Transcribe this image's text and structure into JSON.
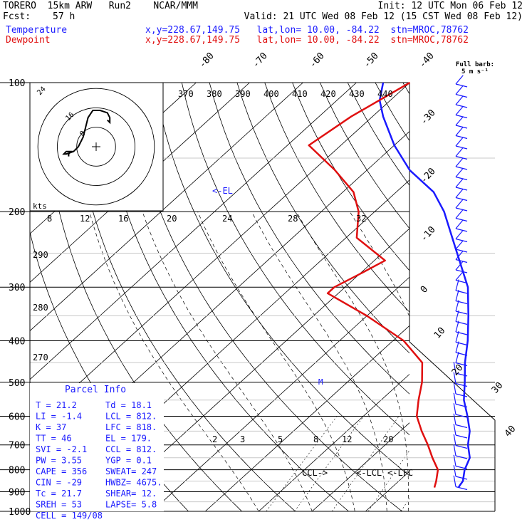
{
  "header": {
    "model": "TORERO  15km ARW   Run2    NCAR/MMM",
    "init": "Init: 12 UTC Mon 06 Feb 12",
    "fcst_label": "Fcst:",
    "fcst_value": "57 h",
    "valid": "Valid: 21 UTC Wed 08 Feb 12 (15 CST Wed 08 Feb 12)"
  },
  "legend": {
    "temperature": {
      "label": "Temperature",
      "location": "x,y=228.67,149.75   lat,lon= 10.00, -84.22  stn=MROC,78762",
      "color": "#1a1aff"
    },
    "dewpoint": {
      "label": "Dewpoint",
      "location": "x,y=228.67,149.75   lat,lon= 10.00, -84.22  stn=MROC,78762",
      "color": "#e01010"
    }
  },
  "barb_legend": {
    "line1": "Full barb:",
    "line2": "5 m s⁻¹"
  },
  "hodograph": {
    "units_label": "kts",
    "ring_labels": [
      "8",
      "16",
      "24"
    ]
  },
  "annotations": {
    "el": "<-EL",
    "ccl": "CCL->",
    "lcl": "<-LCL",
    "lfc": "<-LFC",
    "m": "M"
  },
  "parcel_info": {
    "title": "Parcel Info",
    "rows": [
      [
        "T   =   21.2",
        "Td =  18.1"
      ],
      [
        "LI  =   -1.4",
        "LCL =  812."
      ],
      [
        "K   =     37",
        "LFC =  818."
      ],
      [
        "TT  =     46",
        "EL  =  179."
      ],
      [
        "SVI =   -2.1",
        "CCL =  812."
      ],
      [
        "PW  =   3.55",
        "YGP =   0.1"
      ],
      [
        "CAPE =   356",
        "SWEAT=  247"
      ],
      [
        "CIN  =   -29",
        "HWBZ= 4675."
      ],
      [
        "Tc  =   21.7",
        "SHEAR=  12."
      ],
      [
        "SREH =    53",
        "LAPSE=  5.8"
      ],
      [
        "CELL = 149/08",
        ""
      ]
    ]
  },
  "chart_data": {
    "type": "line",
    "subtype": "skew-t log-p sounding",
    "y_axis": {
      "quantity": "pressure (hPa)",
      "scale": "log",
      "ticks": [
        100,
        200,
        300,
        400,
        500,
        600,
        700,
        800,
        900,
        1000
      ],
      "range": [
        1000,
        100
      ]
    },
    "isotherm_labels": [
      -80,
      -70,
      -60,
      -50,
      -40,
      -30,
      -20,
      -10,
      0,
      10,
      20,
      30,
      40
    ],
    "theta_e_labels": [
      370,
      380,
      390,
      400,
      410,
      420,
      430,
      440
    ],
    "mixing_ratio_upper_labels": [
      8,
      12,
      16,
      20,
      24,
      28,
      32
    ],
    "mixing_ratio_lower_labels": [
      2,
      3,
      5,
      8,
      12,
      20
    ],
    "theta_labels": [
      290,
      280,
      270
    ],
    "series": [
      {
        "name": "Temperature",
        "color": "#1a1aff",
        "values": [
          [
            880,
            22.5
          ],
          [
            870,
            22.3
          ],
          [
            850,
            22.0
          ],
          [
            800,
            20.0
          ],
          [
            750,
            18.5
          ],
          [
            700,
            15.5
          ],
          [
            650,
            13.0
          ],
          [
            600,
            9.5
          ],
          [
            550,
            5.5
          ],
          [
            500,
            2.0
          ],
          [
            450,
            -2.0
          ],
          [
            400,
            -6.0
          ],
          [
            350,
            -11.0
          ],
          [
            300,
            -17.0
          ],
          [
            250,
            -26.0
          ],
          [
            200,
            -37.0
          ],
          [
            180,
            -43.0
          ],
          [
            160,
            -52.0
          ],
          [
            140,
            -60.0
          ],
          [
            120,
            -68.0
          ],
          [
            110,
            -72.0
          ],
          [
            100,
            -75.0
          ]
        ]
      },
      {
        "name": "Dewpoint",
        "color": "#e01010",
        "values": [
          [
            880,
            18.0
          ],
          [
            850,
            17.0
          ],
          [
            800,
            15.0
          ],
          [
            750,
            11.5
          ],
          [
            700,
            8.0
          ],
          [
            650,
            4.0
          ],
          [
            600,
            0.0
          ],
          [
            550,
            -3.0
          ],
          [
            500,
            -6.0
          ],
          [
            450,
            -10.0
          ],
          [
            400,
            -18.0
          ],
          [
            350,
            -30.0
          ],
          [
            310,
            -42.0
          ],
          [
            300,
            -42.0
          ],
          [
            280,
            -40.0
          ],
          [
            260,
            -38.0
          ],
          [
            230,
            -48.0
          ],
          [
            200,
            -53.0
          ],
          [
            180,
            -58.0
          ],
          [
            160,
            -66.0
          ],
          [
            140,
            -76.0
          ],
          [
            120,
            -74.0
          ],
          [
            100,
            -70.0
          ]
        ]
      }
    ],
    "hodograph_path_kts": [
      [
        -4,
        -4
      ],
      [
        -4,
        -3
      ],
      [
        -3,
        -2
      ],
      [
        -5,
        -2
      ],
      [
        -6,
        -3
      ],
      [
        -5,
        -3
      ],
      [
        -2,
        -2
      ],
      [
        0,
        0
      ],
      [
        2,
        4
      ],
      [
        3,
        8
      ],
      [
        4,
        12
      ],
      [
        6,
        15
      ],
      [
        9,
        15
      ],
      [
        12,
        14
      ],
      [
        13,
        12
      ],
      [
        13,
        10
      ],
      [
        12,
        11
      ]
    ],
    "wind_barbs_count": 40
  }
}
